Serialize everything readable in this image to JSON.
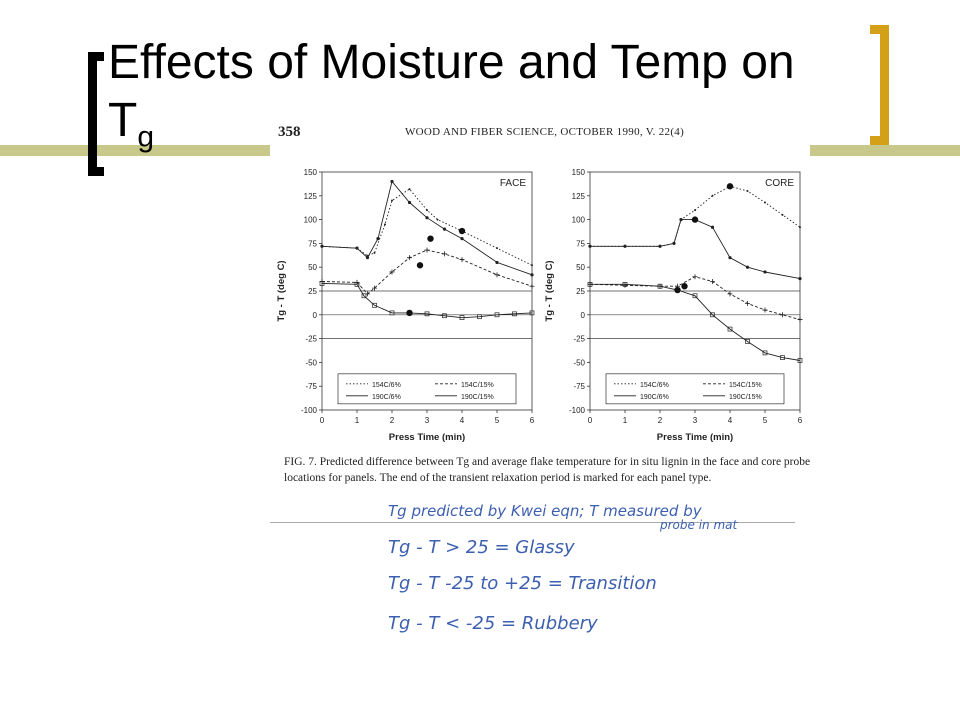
{
  "slide": {
    "title_main": "Effects of Moisture and Temp on T",
    "title_sub": "g",
    "colors": {
      "olive": "#c8c88a",
      "gold": "#d4a017",
      "bracket": "#000000",
      "ink": "#3c5fb0"
    }
  },
  "page_header": {
    "page_number": "358",
    "journal": "WOOD AND FIBER SCIENCE, OCTOBER 1990, V. 22(4)"
  },
  "figure_caption": "FIG. 7.  Predicted difference between Tg and average flake temperature for in situ lignin in the face and core probe locations for panels. The end of the transient relaxation period is marked for each panel type.",
  "handwritten_notes": [
    "Tg  predicted by Kwei eqn; T measured by",
    "probe in mat",
    "Tg - T  >  25  = Glassy",
    "Tg - T   -25 to +25 = Transition",
    "Tg - T  <  -25  = Rubbery"
  ],
  "chart_data": [
    {
      "type": "line",
      "title": "FACE",
      "xlabel": "Press Time (min)",
      "ylabel": "Tg - T (deg C)",
      "xlim": [
        0,
        6
      ],
      "ylim": [
        -100,
        150
      ],
      "xticks": [
        "0",
        "1",
        "2",
        "3",
        "4",
        "5",
        "6"
      ],
      "yticks": [
        "150",
        "125",
        "100",
        "75",
        "50",
        "25",
        "0",
        "-25",
        "-50",
        "-75",
        "-100"
      ],
      "reference_lines": [
        25,
        0,
        -25
      ],
      "legend_position": "bottom",
      "series": [
        {
          "name": "154C/6%",
          "marker": "dot",
          "x": [
            0,
            1,
            1.3,
            1.5,
            1.8,
            2,
            2.5,
            3,
            3.3,
            4,
            5,
            6
          ],
          "y": [
            72,
            70,
            62,
            65,
            95,
            120,
            132,
            110,
            100,
            88,
            70,
            52
          ],
          "end_marker": [
            4,
            88
          ]
        },
        {
          "name": "154C/15%",
          "marker": "plus",
          "x": [
            0,
            1,
            1.3,
            1.5,
            2,
            2.5,
            3,
            3.5,
            4,
            5,
            6
          ],
          "y": [
            35,
            34,
            22,
            28,
            45,
            60,
            68,
            64,
            58,
            42,
            30
          ],
          "end_marker": [
            2.8,
            52
          ]
        },
        {
          "name": "190C/6%",
          "marker": "star",
          "x": [
            0,
            1,
            1.3,
            1.6,
            2,
            2.5,
            3,
            3.5,
            4,
            5,
            6
          ],
          "y": [
            72,
            70,
            60,
            80,
            140,
            118,
            102,
            90,
            80,
            55,
            42
          ],
          "end_marker": [
            3.1,
            80
          ]
        },
        {
          "name": "190C/15%",
          "marker": "square",
          "x": [
            0,
            1,
            1.2,
            1.5,
            2,
            2.5,
            3,
            3.5,
            4,
            4.5,
            5,
            5.5,
            6
          ],
          "y": [
            33,
            32,
            20,
            10,
            2,
            2,
            1,
            -1,
            -3,
            -2,
            0,
            1,
            2
          ],
          "end_marker": [
            2.5,
            2
          ]
        }
      ]
    },
    {
      "type": "line",
      "title": "CORE",
      "xlabel": "Press Time (min)",
      "ylabel": "Tg - T (deg C)",
      "xlim": [
        0,
        6
      ],
      "ylim": [
        -100,
        150
      ],
      "xticks": [
        "0",
        "1",
        "2",
        "3",
        "4",
        "5",
        "6"
      ],
      "yticks": [
        "150",
        "125",
        "100",
        "75",
        "50",
        "25",
        "0",
        "-25",
        "-50",
        "-75",
        "-100"
      ],
      "reference_lines": [
        25,
        0,
        -25
      ],
      "legend_position": "bottom",
      "series": [
        {
          "name": "154C/6%",
          "marker": "dot",
          "x": [
            0,
            1,
            2,
            2.4,
            2.6,
            3,
            3.5,
            4,
            4.5,
            5,
            5.5,
            6
          ],
          "y": [
            72,
            72,
            72,
            75,
            100,
            110,
            125,
            135,
            130,
            118,
            105,
            92
          ],
          "end_marker": [
            4,
            135
          ]
        },
        {
          "name": "154C/15%",
          "marker": "plus",
          "x": [
            0,
            1,
            2,
            2.5,
            3,
            3.5,
            4,
            4.5,
            5,
            5.5,
            6
          ],
          "y": [
            32,
            31,
            30,
            30,
            40,
            35,
            22,
            12,
            5,
            0,
            -5
          ],
          "end_marker": [
            2.7,
            30
          ]
        },
        {
          "name": "190C/6%",
          "marker": "star",
          "x": [
            0,
            1,
            2,
            2.4,
            2.6,
            3,
            3.5,
            4,
            4.5,
            5,
            6
          ],
          "y": [
            72,
            72,
            72,
            75,
            100,
            100,
            92,
            60,
            50,
            45,
            38
          ],
          "end_marker": [
            3,
            100
          ]
        },
        {
          "name": "190C/15%",
          "marker": "square",
          "x": [
            0,
            1,
            2,
            2.5,
            3,
            3.5,
            4,
            4.5,
            5,
            5.5,
            6
          ],
          "y": [
            32,
            32,
            30,
            26,
            20,
            0,
            -15,
            -28,
            -40,
            -45,
            -48
          ],
          "end_marker": [
            2.5,
            26
          ]
        }
      ]
    }
  ]
}
